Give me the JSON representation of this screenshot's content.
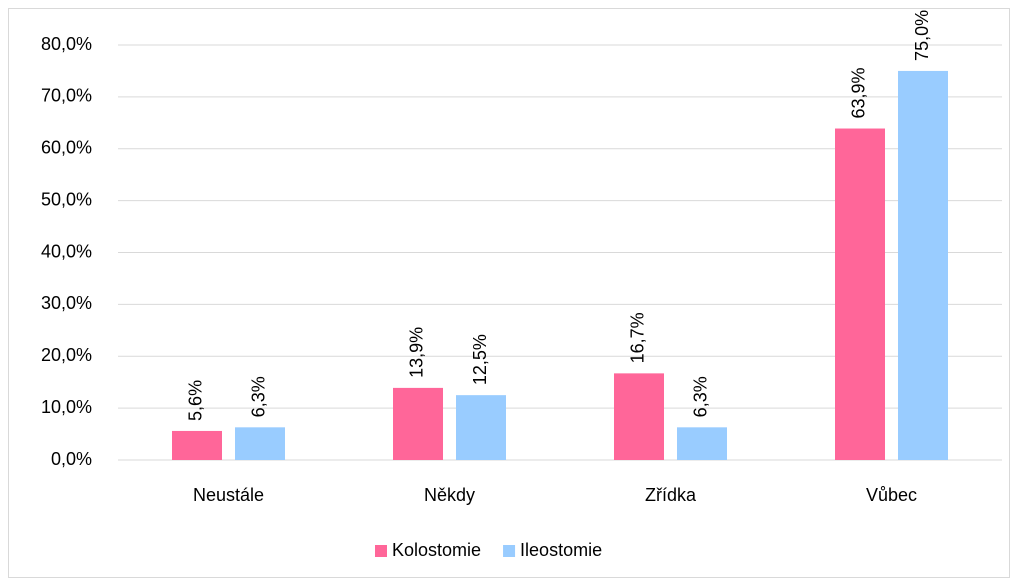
{
  "chart_data": {
    "type": "bar",
    "categories": [
      "Neustále",
      "Někdy",
      "Zřídka",
      "Vůbec"
    ],
    "series": [
      {
        "name": "Kolostomie",
        "color": "#ff6699",
        "values": [
          5.6,
          13.9,
          16.7,
          63.9
        ],
        "value_labels": [
          "5,6%",
          "13,9%",
          "16,7%",
          "63,9%"
        ]
      },
      {
        "name": "Ileostomie",
        "color": "#99ccff",
        "values": [
          6.3,
          12.5,
          6.3,
          75.0
        ],
        "value_labels": [
          "6,3%",
          "12,5%",
          "6,3%",
          "75,0%"
        ]
      }
    ],
    "ylim": [
      0,
      80
    ],
    "yticks": [
      {
        "value": 0,
        "label": "0,0%"
      },
      {
        "value": 10,
        "label": "10,0%"
      },
      {
        "value": 20,
        "label": "20,0%"
      },
      {
        "value": 30,
        "label": "30,0%"
      },
      {
        "value": 40,
        "label": "40,0%"
      },
      {
        "value": 50,
        "label": "50,0%"
      },
      {
        "value": 60,
        "label": "60,0%"
      },
      {
        "value": 70,
        "label": "70,0%"
      },
      {
        "value": 80,
        "label": "80,0%"
      }
    ],
    "grid": true,
    "legend": "bottom"
  }
}
